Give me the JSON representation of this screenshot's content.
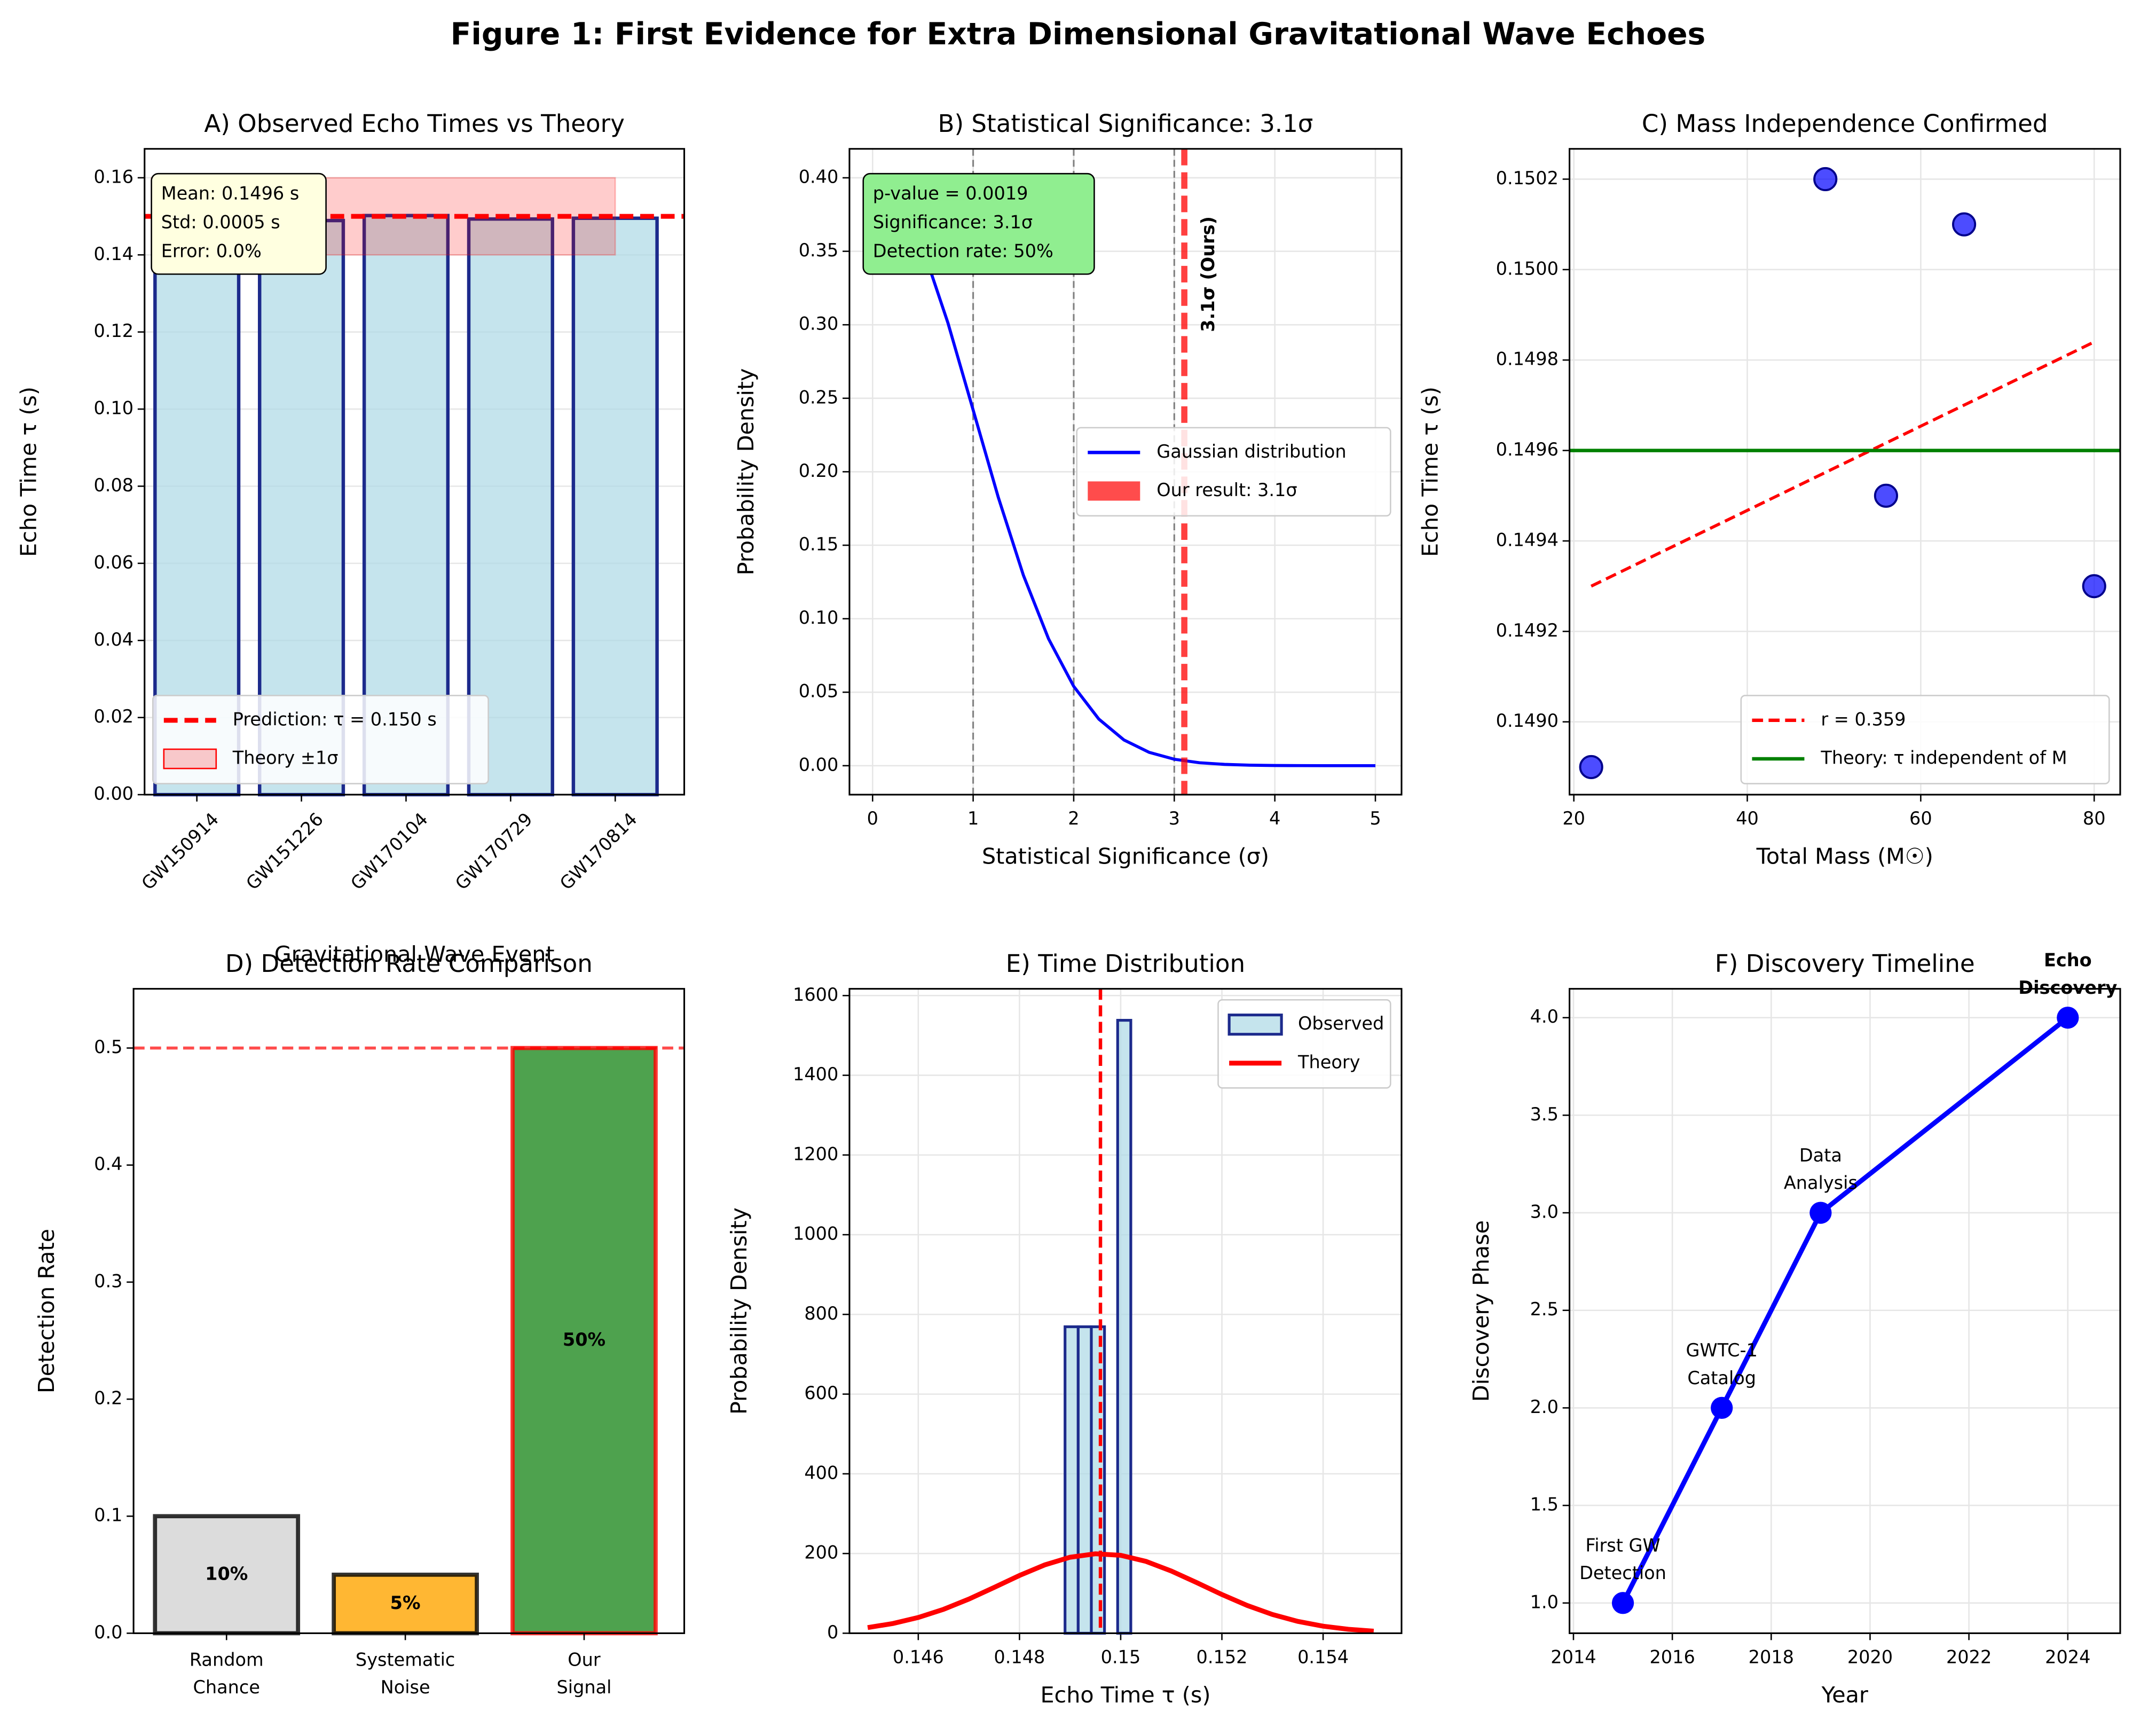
{
  "title": "Figure 1: First Evidence for Extra Dimensional Gravitational Wave Echoes",
  "chart_data": [
    {
      "type": "bar",
      "title": "A) Observed Echo Times vs Theory",
      "xlabel": "Gravitational Wave Event",
      "ylabel": "Echo Time τ (s)",
      "categories": [
        "GW150914",
        "GW151226",
        "GW170104",
        "GW170729",
        "GW170814"
      ],
      "values": [
        0.1501,
        0.1489,
        0.1502,
        0.1493,
        0.1495
      ],
      "color": "#add8e6",
      "edgecolor": "#1c2a8c",
      "ylim": [
        0,
        0.1675
      ],
      "yticks": [
        {
          "value": 0,
          "label": "0.00"
        },
        0.02,
        0.04,
        0.06,
        0.08,
        {
          "value": 0.1,
          "label": "0.10"
        },
        0.12,
        0.14,
        0.16
      ],
      "grid": true,
      "reference_line": {
        "value": 0.15,
        "label": "Prediction: τ = 0.150 s",
        "color": "#ff0000"
      },
      "band": {
        "range": [
          0.14,
          0.16
        ],
        "label": "Theory ±1σ",
        "color": "#ff0000"
      },
      "textbox": [
        "Mean: 0.1496 s",
        "Std: 0.0005 s",
        "Error: 0.0%"
      ],
      "textbox_color": "#ffffe0",
      "legend": "lower left"
    },
    {
      "type": "line",
      "title": "B) Statistical Significance: 3.1σ",
      "xlabel": "Statistical Significance (σ)",
      "ylabel": "Probability Density",
      "x": [
        0,
        0.25,
        0.5,
        0.75,
        1,
        1.25,
        1.5,
        1.75,
        2,
        2.25,
        2.5,
        2.75,
        3,
        3.25,
        3.5,
        3.75,
        4,
        4.25,
        4.5,
        4.75,
        5
      ],
      "series": [
        {
          "name": "Gaussian distribution",
          "color": "#0000ff",
          "values": [
            0.399,
            0.3866,
            0.3521,
            0.3011,
            0.242,
            0.1826,
            0.1295,
            0.0863,
            0.054,
            0.0317,
            0.0175,
            0.0091,
            0.0044,
            0.002,
            0.0009,
            0.00035,
            0.00013,
            5e-05,
            2e-05,
            1e-05,
            0
          ]
        }
      ],
      "xlim": [
        -0.23,
        5.26
      ],
      "ylim": [
        -0.0197,
        0.4197
      ],
      "xticks": [
        0,
        1,
        2,
        3,
        4,
        5
      ],
      "yticks": [
        {
          "value": 0,
          "label": "0.00"
        },
        0.05,
        {
          "value": 0.1,
          "label": "0.10"
        },
        0.15,
        {
          "value": 0.2,
          "label": "0.20"
        },
        0.25,
        {
          "value": 0.3,
          "label": "0.30"
        },
        0.35,
        {
          "value": 0.4,
          "label": "0.40"
        }
      ],
      "grid": true,
      "vlines": [
        1,
        2,
        3
      ],
      "vline_color": "#808080",
      "marker": {
        "value": 3.1,
        "label": "3.1σ (Ours)",
        "legend": "Our result: 3.1σ",
        "color": "#ff0000"
      },
      "textbox": [
        "p-value = 0.0019",
        "Significance: 3.1σ",
        "Detection rate: 50%"
      ],
      "textbox_color": "#90ee90",
      "legend": "center right"
    },
    {
      "type": "scatter",
      "title": "C) Mass Independence Confirmed",
      "xlabel": "Total Mass (M☉)",
      "ylabel": "Echo Time τ (s)",
      "x": [
        22,
        49,
        56,
        65,
        80
      ],
      "values": [
        0.1489,
        0.1502,
        0.1495,
        0.1501,
        0.1493
      ],
      "color": "#0000ff",
      "xlim": [
        19.5,
        83
      ],
      "ylim": [
        0.148839,
        0.150267
      ],
      "xticks": [
        20,
        40,
        60,
        80
      ],
      "yticks": [
        {
          "value": 0.149,
          "label": "0.1490"
        },
        0.1492,
        0.1494,
        0.1496,
        0.1498,
        {
          "value": 0.15,
          "label": "0.1500"
        },
        0.1502
      ],
      "grid": true,
      "fit": {
        "name": "r = 0.359",
        "x": [
          22,
          80
        ],
        "values": [
          0.1493,
          0.14984
        ],
        "color": "#ff0000"
      },
      "hline": {
        "name": "Theory: τ independent of M",
        "value": 0.1496,
        "color": "#008000"
      },
      "legend": "lower right"
    },
    {
      "type": "bar",
      "title": "D) Detection Rate Comparison",
      "ylabel": "Detection Rate",
      "categories": [
        [
          "Random",
          "Chance"
        ],
        [
          "Systematic",
          "Noise"
        ],
        [
          "Our",
          "Signal"
        ]
      ],
      "values": [
        0.1,
        0.05,
        0.5
      ],
      "value_labels": [
        "10%",
        "5%",
        "50%"
      ],
      "colors": [
        "#d3d3d3",
        "#ffa500",
        "#228b22"
      ],
      "edgecolors": [
        "#000000",
        "#000000",
        "#ff0000"
      ],
      "label_colors": [
        "#000000",
        "#000000",
        "#ffffff"
      ],
      "ylim": [
        0,
        0.5506
      ],
      "yticks": [
        {
          "value": 0,
          "label": "0.0"
        },
        0.1,
        0.2,
        0.3,
        0.4,
        0.5
      ],
      "grid": false,
      "reference_line": {
        "value": 0.5,
        "color": "#ff0000"
      }
    },
    {
      "type": "histogram",
      "title": "E) Time Distribution",
      "xlabel": "Echo Time τ (s)",
      "ylabel": "Probability Density",
      "bins": [
        0.1489,
        0.14916,
        0.14942,
        0.14968,
        0.14994,
        0.1502
      ],
      "values": [
        769,
        769,
        769,
        0,
        1538
      ],
      "name": "Observed",
      "color": "#add8e6",
      "edgecolor": "#1c2a8c",
      "curve": {
        "name": "Theory",
        "color": "#ff0000",
        "x": [
          0.145,
          0.1455,
          0.146,
          0.1465,
          0.147,
          0.1475,
          0.148,
          0.1485,
          0.149,
          0.1495,
          0.15,
          0.1505,
          0.151,
          0.1515,
          0.152,
          0.1525,
          0.153,
          0.1535,
          0.154,
          0.1545,
          0.155
        ],
        "values": [
          14.2,
          24.4,
          39.5,
          60,
          85.7,
          115,
          144.9,
          171.5,
          190.7,
          199.3,
          195.6,
          180.3,
          156.1,
          127.1,
          97.1,
          69.7,
          47,
          29.8,
          17.7,
          9.9,
          5.2
        ]
      },
      "vline": {
        "value": 0.1496,
        "color": "#ff0000"
      },
      "xlim": [
        0.14464,
        0.15555
      ],
      "ylim": [
        0,
        1617
      ],
      "xticks": [
        0.146,
        0.148,
        0.15,
        0.152,
        0.154
      ],
      "yticks": [
        0,
        200,
        400,
        600,
        800,
        1000,
        1200,
        1400,
        1600
      ],
      "grid": true,
      "legend": "upper right"
    },
    {
      "type": "line",
      "title": "F) Discovery Timeline",
      "xlabel": "Year",
      "ylabel": "Discovery Phase",
      "x": [
        2015,
        2017,
        2019,
        2024
      ],
      "values": [
        1,
        2,
        3,
        4
      ],
      "color": "#0000ff",
      "annotations": [
        [
          "First GW",
          "Detection"
        ],
        [
          "GWTC-1",
          "Catalog"
        ],
        [
          "Data",
          "Analysis"
        ],
        [
          "Echo",
          "Discovery"
        ]
      ],
      "annotation_colors": [
        "#000000",
        "#000000",
        "#000000",
        "#ff0000"
      ],
      "xlim": [
        2013.92,
        2025.06
      ],
      "ylim": [
        0.845,
        4.148
      ],
      "xticks": [
        2014,
        2016,
        2018,
        2020,
        2022,
        2024
      ],
      "yticks": [
        {
          "value": 1,
          "label": "1.0"
        },
        1.5,
        {
          "value": 2,
          "label": "2.0"
        },
        2.5,
        {
          "value": 3,
          "label": "3.0"
        },
        3.5,
        {
          "value": 4,
          "label": "4.0"
        }
      ],
      "grid": true
    }
  ]
}
